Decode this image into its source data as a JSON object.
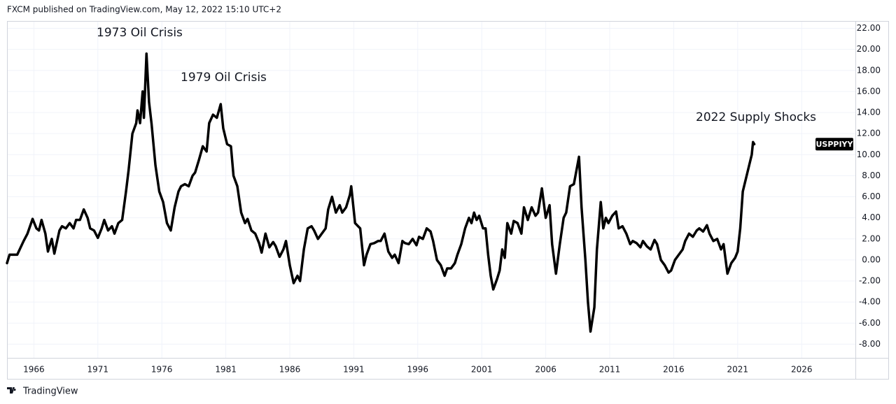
{
  "header": "FXCM published on TradingView.com, May 12, 2022 15:10 UTC+2",
  "footer": "TradingView",
  "chart_data": {
    "type": "line",
    "annotations": [
      "1973 Oil Crisis",
      "1979 Oil Crisis",
      "2022 Supply Shocks"
    ],
    "x": [
      1963.9,
      1964.1,
      1964.7,
      1965.2,
      1965.5,
      1965.9,
      1966.2,
      1966.4,
      1966.6,
      1966.9,
      1967.1,
      1967.4,
      1967.6,
      1968.0,
      1968.2,
      1968.5,
      1968.8,
      1969.1,
      1969.3,
      1969.6,
      1969.9,
      1970.2,
      1970.4,
      1970.7,
      1971.0,
      1971.3,
      1971.5,
      1971.8,
      1972.1,
      1972.3,
      1972.6,
      1972.9,
      1973.2,
      1973.4,
      1973.7,
      1974.0,
      1974.1,
      1974.3,
      1974.5,
      1974.6,
      1974.8,
      1975.0,
      1975.2,
      1975.5,
      1975.8,
      1976.1,
      1976.4,
      1976.7,
      1977.0,
      1977.3,
      1977.5,
      1977.8,
      1978.1,
      1978.4,
      1978.6,
      1978.9,
      1979.2,
      1979.5,
      1979.7,
      1980.0,
      1980.3,
      1980.6,
      1980.8,
      1981.1,
      1981.4,
      1981.6,
      1981.9,
      1982.2,
      1982.5,
      1982.7,
      1983.0,
      1983.3,
      1983.6,
      1983.8,
      1984.1,
      1984.4,
      1984.7,
      1984.9,
      1985.2,
      1985.5,
      1985.7,
      1986.0,
      1986.3,
      1986.6,
      1986.8,
      1987.1,
      1987.4,
      1987.7,
      1987.9,
      1988.2,
      1988.5,
      1988.8,
      1989.0,
      1989.3,
      1989.6,
      1989.9,
      1990.1,
      1990.4,
      1990.7,
      1990.8,
      1991.1,
      1991.5,
      1991.8,
      1992.0,
      1992.3,
      1992.6,
      1992.9,
      1993.1,
      1993.4,
      1993.7,
      1994.0,
      1994.2,
      1994.5,
      1994.8,
      1995.0,
      1995.3,
      1995.6,
      1995.9,
      1996.1,
      1996.4,
      1996.7,
      1997.0,
      1997.2,
      1997.5,
      1997.8,
      1998.1,
      1998.3,
      1998.6,
      1998.9,
      1999.1,
      1999.4,
      1999.7,
      2000.0,
      2000.2,
      2000.4,
      2000.6,
      2000.8,
      2001.1,
      2001.3,
      2001.5,
      2001.7,
      2001.9,
      2002.2,
      2002.4,
      2002.6,
      2002.8,
      2003.0,
      2003.3,
      2003.5,
      2003.8,
      2004.1,
      2004.3,
      2004.6,
      2004.9,
      2005.2,
      2005.4,
      2005.7,
      2006.0,
      2006.3,
      2006.5,
      2006.8,
      2007.1,
      2007.4,
      2007.6,
      2007.9,
      2008.2,
      2008.6,
      2008.8,
      2009.1,
      2009.3,
      2009.5,
      2009.8,
      2010.0,
      2010.3,
      2010.5,
      2010.7,
      2010.9,
      2011.2,
      2011.5,
      2011.7,
      2012.0,
      2012.3,
      2012.6,
      2012.8,
      2013.1,
      2013.4,
      2013.6,
      2013.9,
      2014.2,
      2014.5,
      2014.7,
      2015.0,
      2015.3,
      2015.6,
      2015.8,
      2016.1,
      2016.4,
      2016.7,
      2016.9,
      2017.2,
      2017.5,
      2017.8,
      2018.0,
      2018.3,
      2018.6,
      2018.8,
      2019.1,
      2019.4,
      2019.7,
      2019.9,
      2020.2,
      2020.5,
      2020.8,
      2021.0,
      2021.2,
      2021.4,
      2021.6,
      2021.9,
      2022.1,
      2022.2,
      2022.3
    ],
    "series": [
      {
        "name": "USPPIYY",
        "color": "#000000",
        "values": [
          -0.3,
          0.5,
          0.5,
          1.8,
          2.5,
          3.9,
          3.0,
          2.8,
          3.8,
          2.5,
          0.8,
          2.0,
          0.6,
          2.8,
          3.2,
          3.0,
          3.5,
          3.0,
          3.8,
          3.8,
          4.8,
          4.0,
          3.0,
          2.8,
          2.1,
          3.0,
          3.8,
          2.8,
          3.2,
          2.5,
          3.5,
          3.8,
          6.5,
          8.5,
          12.0,
          13.0,
          14.2,
          13.0,
          16.0,
          13.5,
          19.6,
          15.0,
          12.9,
          9.0,
          6.5,
          5.5,
          3.5,
          2.8,
          5.0,
          6.5,
          7.0,
          7.2,
          7.0,
          8.0,
          8.3,
          9.5,
          10.8,
          10.3,
          13.0,
          13.8,
          13.5,
          14.8,
          12.5,
          11.0,
          10.8,
          8.0,
          7.0,
          4.5,
          3.5,
          3.9,
          2.8,
          2.5,
          1.6,
          0.7,
          2.5,
          1.2,
          1.7,
          1.3,
          0.3,
          1.0,
          1.8,
          -0.5,
          -2.2,
          -1.5,
          -2.0,
          1.0,
          3.0,
          3.2,
          2.8,
          2.0,
          2.5,
          3.0,
          4.8,
          6.0,
          4.5,
          5.2,
          4.5,
          5.0,
          6.2,
          7.0,
          3.5,
          3.0,
          -0.5,
          0.5,
          1.5,
          1.6,
          1.8,
          1.8,
          2.5,
          0.8,
          0.2,
          0.5,
          -0.3,
          1.8,
          1.6,
          1.5,
          2.0,
          1.4,
          2.2,
          2.0,
          3.0,
          2.7,
          1.8,
          0.0,
          -0.5,
          -1.5,
          -0.8,
          -0.8,
          -0.3,
          0.5,
          1.5,
          3.0,
          4.0,
          3.5,
          4.5,
          3.8,
          4.2,
          3.0,
          3.0,
          0.5,
          -1.5,
          -2.8,
          -1.8,
          -1.0,
          1.0,
          0.2,
          3.5,
          2.5,
          3.7,
          3.5,
          2.5,
          5.0,
          3.8,
          5.0,
          4.2,
          4.5,
          6.8,
          4.0,
          5.2,
          1.5,
          -1.3,
          1.5,
          4.0,
          4.5,
          7.0,
          7.2,
          9.8,
          5.0,
          0.0,
          -4.0,
          -6.8,
          -4.5,
          1.0,
          5.5,
          3.0,
          4.0,
          3.5,
          4.2,
          4.6,
          3.0,
          3.2,
          2.5,
          1.5,
          1.8,
          1.6,
          1.2,
          1.8,
          1.3,
          1.0,
          1.9,
          1.5,
          0.0,
          -0.5,
          -1.2,
          -1.0,
          0.0,
          0.5,
          1.0,
          1.8,
          2.5,
          2.2,
          2.8,
          3.0,
          2.7,
          3.3,
          2.5,
          1.8,
          2.0,
          1.0,
          1.5,
          -1.3,
          -0.3,
          0.2,
          0.8,
          3.0,
          6.5,
          7.5,
          9.0,
          10.0,
          11.2,
          11.0
        ]
      }
    ],
    "xlim": [
      1963.9,
      2030.2
    ],
    "xticks": [
      1966,
      1971,
      1976,
      1981,
      1986,
      1991,
      1996,
      2001,
      2006,
      2011,
      2016,
      2021,
      2026
    ],
    "ylim": [
      -9.3,
      22.7
    ],
    "yticks": [
      {
        "value": -8,
        "label": "-8.00"
      },
      {
        "value": -6,
        "label": "-6.00"
      },
      {
        "value": -4,
        "label": "-4.00"
      },
      {
        "value": -2,
        "label": "-2.00"
      },
      {
        "value": 0,
        "label": "0.00"
      },
      {
        "value": 2,
        "label": "2.00"
      },
      {
        "value": 4,
        "label": "4.00"
      },
      {
        "value": 6,
        "label": "6.00"
      },
      {
        "value": 8,
        "label": "8.00"
      },
      {
        "value": 10,
        "label": "10.00"
      },
      {
        "value": 12,
        "label": "12.00"
      },
      {
        "value": 14,
        "label": "14.00"
      },
      {
        "value": 16,
        "label": "16.00"
      },
      {
        "value": 18,
        "label": "18.00"
      },
      {
        "value": 20,
        "label": "20.00"
      },
      {
        "value": 22,
        "label": "22.00"
      }
    ],
    "grid": true
  }
}
